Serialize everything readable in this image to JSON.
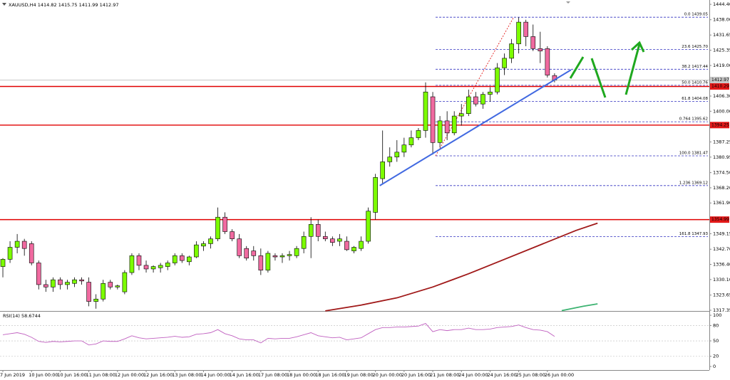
{
  "chart_data": {
    "type": "candlestick",
    "title": "XAUUSD,H4",
    "up_color": "#7cfc00",
    "down_color": "#f06aa0",
    "open": [
      1335.5,
      1338.5,
      1343.5,
      1346,
      1345,
      1337,
      1328,
      1327,
      1330,
      1328,
      1328.5,
      1330,
      1329,
      1321,
      1322,
      1329,
      1327,
      1325,
      1333,
      1340,
      1336,
      1334.5,
      1335,
      1335.5,
      1337,
      1340,
      1337.5,
      1339.5,
      1344,
      1345,
      1347,
      1356,
      1350,
      1347,
      1343,
      1342,
      1340,
      1334,
      1340,
      1339.5,
      1340,
      1340,
      1343,
      1348,
      1353,
      1348,
      1347,
      1346,
      1346,
      1342,
      1343,
      1346,
      1358,
      1372,
      1379,
      1381,
      1383,
      1386,
      1389,
      1392,
      1406,
      1387,
      1396,
      1391,
      1398,
      1399,
      1406,
      1403,
      1407,
      1408,
      1418,
      1422,
      1428,
      1437,
      1431,
      1426,
      1426,
      1414.82
    ],
    "high": [
      1339,
      1346,
      1349,
      1347,
      1346,
      1338,
      1330,
      1331,
      1331,
      1330,
      1331,
      1331,
      1331,
      1324,
      1330,
      1330,
      1328,
      1334,
      1341,
      1341,
      1338,
      1336,
      1337,
      1338,
      1341,
      1341,
      1340,
      1346,
      1346,
      1348,
      1360,
      1358,
      1351,
      1349,
      1344,
      1344,
      1343,
      1342,
      1341,
      1341,
      1342,
      1344,
      1350,
      1356,
      1355,
      1350,
      1348,
      1349,
      1348,
      1344,
      1348,
      1360,
      1374,
      1392,
      1385,
      1388,
      1389,
      1392,
      1393,
      1412,
      1408,
      1398,
      1400,
      1400,
      1403,
      1409,
      1408,
      1408,
      1410,
      1420,
      1424,
      1430,
      1439,
      1438,
      1436,
      1433,
      1427,
      1415.75
    ],
    "low": [
      1331,
      1337,
      1341,
      1340,
      1336,
      1326,
      1325,
      1325,
      1326,
      1326,
      1327,
      1328,
      1319,
      1318,
      1321,
      1326,
      1326,
      1324,
      1332,
      1334,
      1333,
      1333,
      1333,
      1334,
      1336,
      1337,
      1336,
      1339,
      1342,
      1343,
      1346,
      1349,
      1346,
      1339,
      1338,
      1338,
      1332,
      1333,
      1338,
      1337,
      1338,
      1339,
      1341,
      1339,
      1346,
      1346,
      1344,
      1344,
      1342,
      1341,
      1342,
      1345,
      1355,
      1370,
      1377,
      1379,
      1381,
      1385,
      1388,
      1389,
      1382,
      1385,
      1388,
      1390,
      1394,
      1398,
      1402,
      1401,
      1404,
      1407,
      1415,
      1420,
      1424,
      1427,
      1425,
      1420,
      1414,
      1411.99
    ],
    "close": [
      1338.5,
      1343.5,
      1346,
      1343,
      1337,
      1328,
      1327,
      1330,
      1328,
      1329,
      1330,
      1329.5,
      1321,
      1322,
      1328.5,
      1327,
      1327.5,
      1333,
      1340,
      1336,
      1334.5,
      1335.5,
      1336,
      1337,
      1340,
      1338,
      1339.5,
      1344.5,
      1345,
      1347,
      1356,
      1350,
      1347,
      1340,
      1339,
      1340,
      1334,
      1341,
      1339.5,
      1340,
      1340.5,
      1343,
      1348,
      1353,
      1348,
      1347,
      1345.5,
      1347,
      1342.5,
      1343.5,
      1346,
      1358.5,
      1372.5,
      1379,
      1381,
      1383,
      1386,
      1389,
      1392,
      1408,
      1387,
      1396,
      1391,
      1398,
      1399,
      1406,
      1403,
      1407,
      1408,
      1418,
      1422,
      1428,
      1437,
      1431,
      1426,
      1425,
      1415,
      1412.97
    ],
    "xlim": [
      -0.4,
      98.6
    ],
    "xticks": [
      {
        "value": 0,
        "label": "7 Jun 2019"
      },
      {
        "value": 4,
        "label": "10 Jun 00:00"
      },
      {
        "value": 8,
        "label": "10 Jun 16:00"
      },
      {
        "value": 12,
        "label": "11 Jun 08:00"
      },
      {
        "value": 16,
        "label": "12 Jun 00:00"
      },
      {
        "value": 20,
        "label": "12 Jun 16:00"
      },
      {
        "value": 24,
        "label": "13 Jun 08:00"
      },
      {
        "value": 28,
        "label": "14 Jun 00:00"
      },
      {
        "value": 32,
        "label": "14 Jun 16:00"
      },
      {
        "value": 36,
        "label": "17 Jun 08:00"
      },
      {
        "value": 40,
        "label": "18 Jun 00:00"
      },
      {
        "value": 44,
        "label": "18 Jun 16:00"
      },
      {
        "value": 48,
        "label": "19 Jun 08:00"
      },
      {
        "value": 52,
        "label": "20 Jun 00:00"
      },
      {
        "value": 56,
        "label": "20 Jun 16:00"
      },
      {
        "value": 60,
        "label": "21 Jun 08:00"
      },
      {
        "value": 64,
        "label": "24 Jun 00:00"
      },
      {
        "value": 68,
        "label": "24 Jun 16:00"
      },
      {
        "value": 72,
        "label": "25 Jun 08:00"
      },
      {
        "value": 76,
        "label": "26 Jun 00:00"
      }
    ],
    "ylim": [
      1317.05,
      1445.9
    ],
    "yticks": [
      {
        "value": 1444.4,
        "label": "1444.40"
      },
      {
        "value": 1438,
        "label": "1438.00"
      },
      {
        "value": 1431.65,
        "label": "1431.65"
      },
      {
        "value": 1425.35,
        "label": "1425.35"
      },
      {
        "value": 1419,
        "label": "1419.00"
      },
      {
        "value": 1406.3,
        "label": "1406.30"
      },
      {
        "value": 1400,
        "label": "1400.00"
      },
      {
        "value": 1387.25,
        "label": "1387.25"
      },
      {
        "value": 1380.95,
        "label": "1380.95"
      },
      {
        "value": 1374.5,
        "label": "1374.50"
      },
      {
        "value": 1368.2,
        "label": "1368.20"
      },
      {
        "value": 1361.9,
        "label": "1361.90"
      },
      {
        "value": 1349.15,
        "label": "1349.15"
      },
      {
        "value": 1342.7,
        "label": "1342.70"
      },
      {
        "value": 1336.4,
        "label": "1336.40"
      },
      {
        "value": 1330.1,
        "label": "1330.10"
      },
      {
        "value": 1323.65,
        "label": "1323.65"
      },
      {
        "value": 1317.35,
        "label": "1317.35"
      }
    ],
    "price_levels": [
      {
        "value": 1412.97,
        "label": "1412.97",
        "color": "#c0c0c0"
      },
      {
        "value": 1410.29,
        "label": "1410.29",
        "color": "#e00000"
      },
      {
        "value": 1394.25,
        "label": "1394.25",
        "color": "#e00000"
      },
      {
        "value": 1354.99,
        "label": "1354.99",
        "color": "#e00000"
      }
    ],
    "fib": {
      "color": "#3030c0",
      "anchor_color": "#e00000",
      "x": [
        60.4,
        71.3
      ],
      "levels": [
        {
          "value": 1439.05,
          "label": "0.0 1439.05"
        },
        {
          "value": 1425.7,
          "label": "23.6 1425.70"
        },
        {
          "value": 1417.44,
          "label": "38.2 1417.44"
        },
        {
          "value": 1410.76,
          "label": "50.0 1410.76"
        },
        {
          "value": 1404.08,
          "label": "61.8 1404.08"
        },
        {
          "value": 1395.62,
          "label": "0.764 1395.62"
        },
        {
          "value": 1381.47,
          "label": "100.0 1381.47"
        },
        {
          "value": 1369.12,
          "label": "1.236 1369.12"
        },
        {
          "value": 1347.93,
          "label": "161.8 1347.93"
        }
      ]
    },
    "trendline": {
      "color": "#4169e1",
      "x": [
        52.6,
        79.3
      ],
      "values": [
        1369.1,
        1417.2
      ]
    },
    "moving_averages": [
      {
        "color": "#a01818",
        "x": [
          45,
          50,
          55,
          60,
          65,
          70,
          75,
          80,
          83
        ],
        "values": [
          1317.1,
          1319.5,
          1322.5,
          1327,
          1332.5,
          1338.5,
          1344.5,
          1350.5,
          1353.5
        ]
      },
      {
        "color": "#3cb371",
        "x": [
          78,
          81,
          83
        ],
        "values": [
          1317.2,
          1319,
          1320
        ]
      }
    ],
    "rsi": {
      "name": "RSI(14)",
      "color": "#c060c0",
      "ylim": [
        -6.9,
        104.2
      ],
      "yticks": [
        100,
        80,
        50,
        20,
        0
      ],
      "values": [
        62,
        64,
        66,
        63,
        57,
        49,
        47,
        49,
        48,
        49,
        50,
        50,
        42,
        44,
        50,
        49,
        49,
        54,
        60,
        56,
        54,
        55,
        56,
        57,
        59,
        57,
        58,
        63,
        64,
        66,
        72,
        64,
        60,
        54,
        52,
        52,
        46,
        55,
        54,
        55,
        55,
        58,
        62,
        66,
        60,
        58,
        56,
        57,
        52,
        54,
        56,
        64,
        72,
        76,
        76,
        77,
        77,
        78,
        79,
        84,
        68,
        72,
        70,
        72,
        72,
        75,
        72,
        72,
        73,
        76,
        77,
        78,
        81,
        76,
        72,
        71,
        68,
        58.6744
      ]
    }
  }
}
